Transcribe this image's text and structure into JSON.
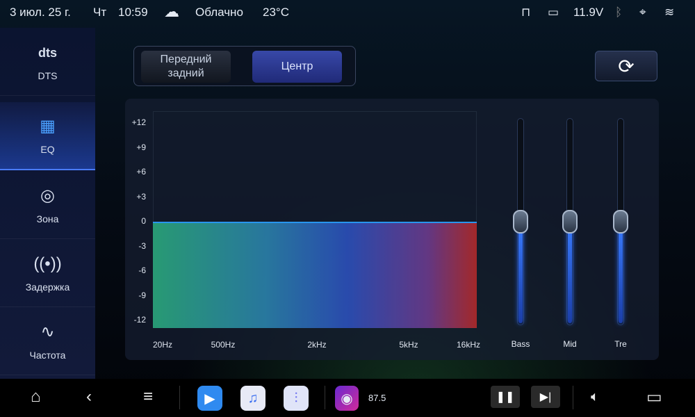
{
  "status": {
    "date": "3 июл. 25 г.",
    "weekday": "Чт",
    "time": "10:59",
    "weather_icon": "cloud-icon",
    "weather": "Облачно",
    "temperature": "23°C",
    "voltage": "11.9V"
  },
  "sidebar": {
    "items": [
      {
        "label": "DTS",
        "icon": "dts"
      },
      {
        "label": "EQ",
        "icon": "eq",
        "active": true
      },
      {
        "label": "Зона",
        "icon": "zone"
      },
      {
        "label": "Задержка",
        "icon": "delay"
      },
      {
        "label": "Частота",
        "icon": "frequency"
      }
    ],
    "dts_logo": "dts"
  },
  "mode": {
    "options": [
      "Передний задний",
      "Центр"
    ],
    "selected": "Центр"
  },
  "eq": {
    "y_ticks": [
      "+12",
      "+9",
      "+6",
      "+3",
      "0",
      "-3",
      "-6",
      "-9",
      "-12"
    ],
    "x_ticks": [
      "20Hz",
      "500Hz",
      "2kHz",
      "5kHz",
      "16kHz"
    ],
    "curve_gain_db": 0,
    "sliders": [
      {
        "label": "Bass",
        "value": 0,
        "min": -12,
        "max": 12
      },
      {
        "label": "Mid",
        "value": 0,
        "min": -12,
        "max": 12
      },
      {
        "label": "Tre",
        "value": 0,
        "min": -12,
        "max": 12
      }
    ],
    "accent": "#2a6cff"
  },
  "bottom": {
    "radio_freq": "87.5"
  }
}
